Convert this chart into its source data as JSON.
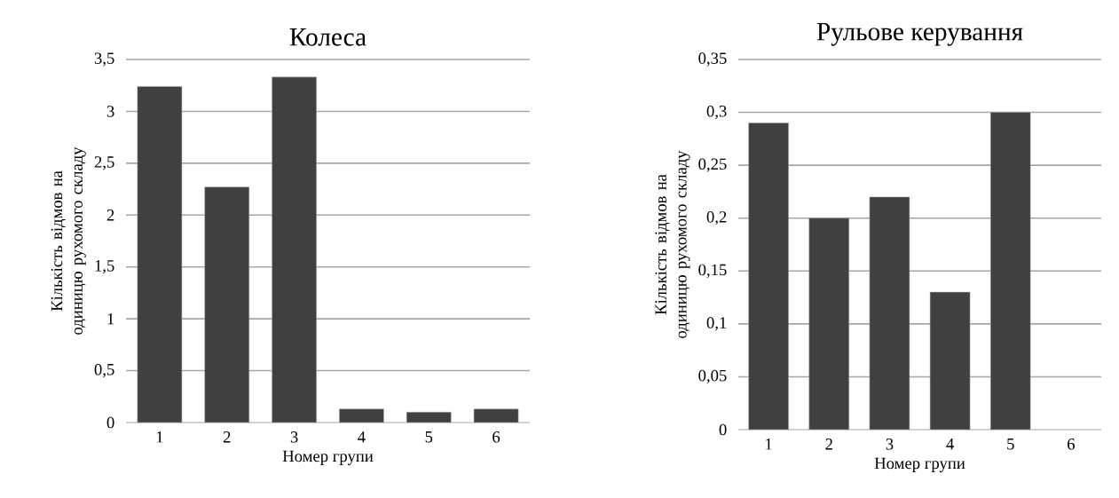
{
  "chart_data": [
    {
      "type": "bar",
      "title": "Колеса",
      "xlabel": "Номер групи",
      "ylabel": "Кількість відмов на одиницю рухомого складу",
      "categories": [
        "1",
        "2",
        "3",
        "4",
        "5",
        "6"
      ],
      "values": [
        3.24,
        2.27,
        3.33,
        0.13,
        0.1,
        0.13
      ],
      "color": "#404040",
      "ylim": [
        0,
        3.5
      ],
      "yticks": [
        0,
        {
          "value": 0.5,
          "label": "0,5"
        },
        1,
        {
          "value": 1.5,
          "label": "1,5"
        },
        2,
        {
          "value": 2.5,
          "label": "2,5"
        },
        3,
        {
          "value": 3.5,
          "label": "3,5"
        }
      ],
      "grid": "y"
    },
    {
      "type": "bar",
      "title": "Рульове керування",
      "xlabel": "Номер групи",
      "ylabel": "Кількість відмов на одиницю рухомого складу",
      "categories": [
        "1",
        "2",
        "3",
        "4",
        "5",
        "6"
      ],
      "values": [
        0.29,
        0.2,
        0.22,
        0.13,
        0.3,
        null
      ],
      "color": "#404040",
      "ylim": [
        0,
        0.35
      ],
      "yticks": [
        0,
        {
          "value": 0.05,
          "label": "0,05"
        },
        {
          "value": 0.1,
          "label": "0,1"
        },
        {
          "value": 0.15,
          "label": "0,15"
        },
        {
          "value": 0.2,
          "label": "0,2"
        },
        {
          "value": 0.25,
          "label": "0,25"
        },
        {
          "value": 0.3,
          "label": "0,3"
        },
        {
          "value": 0.35,
          "label": "0,35"
        }
      ],
      "grid": "y"
    }
  ]
}
